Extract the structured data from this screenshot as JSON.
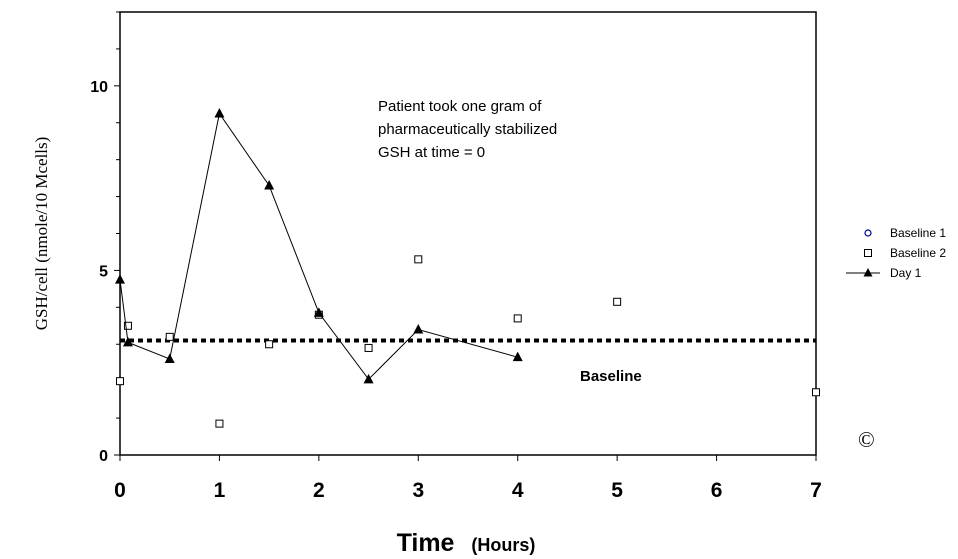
{
  "chart_data": {
    "type": "scatter",
    "ylabel": "GSH/cell (nmole/10 Mcells)",
    "xlabel": "Time",
    "xlabel_unit": "(Hours)",
    "xlim": [
      0,
      7
    ],
    "ylim": [
      0,
      12
    ],
    "x_ticks": [
      "0",
      "1",
      "2",
      "3",
      "4",
      "5",
      "6",
      "7"
    ],
    "y_ticks": [
      {
        "value": 0,
        "label": "0"
      },
      {
        "value": 5,
        "label": "5"
      },
      {
        "value": 10,
        "label": "10"
      }
    ],
    "grid": false,
    "legend_position": "right",
    "annotation": [
      "Patient took one gram of",
      "pharmaceutically stabilized",
      "GSH at time = 0"
    ],
    "baseline": {
      "value": 3.1,
      "label": "Baseline"
    },
    "copyright": "©",
    "series": [
      {
        "name": "Baseline 1",
        "marker": "circle",
        "color": "#00008b",
        "line": false,
        "points": []
      },
      {
        "name": "Baseline 2",
        "marker": "square",
        "color": "#000000",
        "line": false,
        "points": [
          [
            0,
            2.0
          ],
          [
            0.08,
            3.5
          ],
          [
            0.5,
            3.2
          ],
          [
            1,
            0.85
          ],
          [
            1.5,
            3.0
          ],
          [
            2,
            3.8
          ],
          [
            2.5,
            2.9
          ],
          [
            3,
            5.3
          ],
          [
            4,
            3.7
          ],
          [
            5,
            4.15
          ],
          [
            7,
            1.7
          ]
        ]
      },
      {
        "name": "Day 1",
        "marker": "triangle",
        "color": "#000000",
        "line": true,
        "points": [
          [
            0,
            4.75
          ],
          [
            0.08,
            3.05
          ],
          [
            0.5,
            2.6
          ],
          [
            1,
            9.25
          ],
          [
            1.5,
            7.3
          ],
          [
            2,
            3.85
          ],
          [
            2.5,
            2.05
          ],
          [
            3,
            3.4
          ],
          [
            4,
            2.65
          ]
        ]
      }
    ]
  }
}
